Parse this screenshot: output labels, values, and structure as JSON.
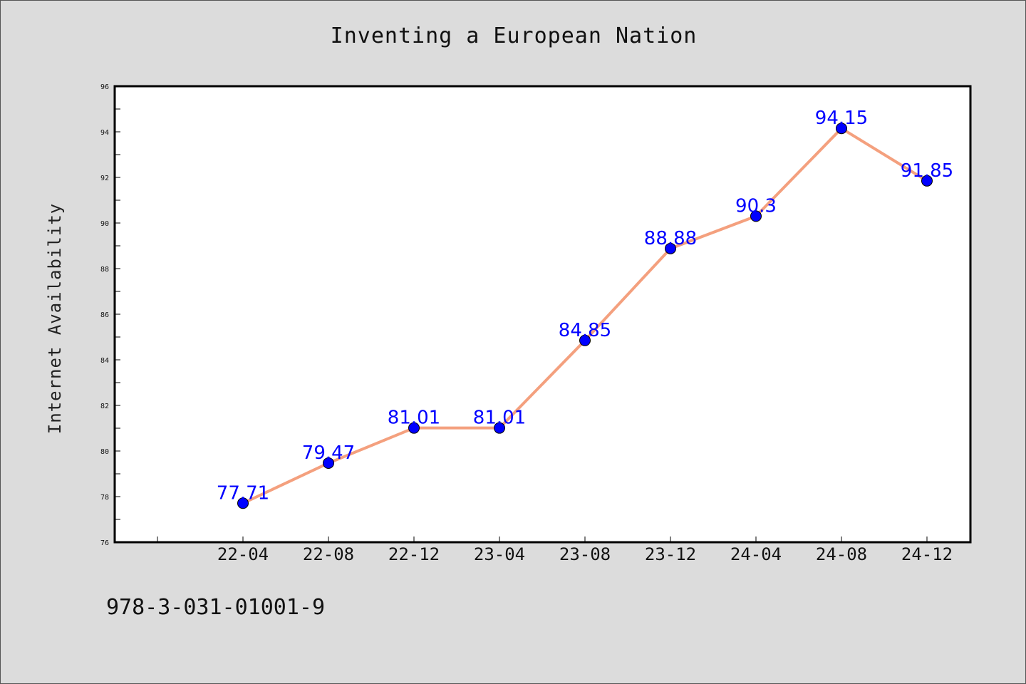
{
  "chart_data": {
    "type": "line",
    "title": "Inventing a European Nation",
    "xlabel": "",
    "ylabel": "Internet Availability",
    "categories": [
      "22-04",
      "22-08",
      "22-12",
      "23-04",
      "23-08",
      "23-12",
      "24-04",
      "24-08",
      "24-12"
    ],
    "series": [
      {
        "values": [
          77.71,
          79.47,
          81.01,
          81.01,
          84.85,
          88.88,
          90.3,
          94.15,
          91.85
        ],
        "data_labels": [
          "77.71",
          "79.47",
          "81.01",
          "81.01",
          "84.85",
          "88.88",
          "90.3",
          "94.15",
          "91.85"
        ],
        "line_color": "#f4a07e",
        "marker_color": "#0000ff"
      }
    ],
    "ylim": [
      76,
      96
    ],
    "yticks": [
      76,
      78,
      80,
      82,
      84,
      86,
      88,
      90,
      92,
      94,
      96
    ],
    "grid": false,
    "legend": "none"
  },
  "footer_text": "978-3-031-01001-9",
  "colors": {
    "background": "#dcdcdc",
    "plot_area": "#ffffff",
    "data_label": "#0000ff"
  }
}
